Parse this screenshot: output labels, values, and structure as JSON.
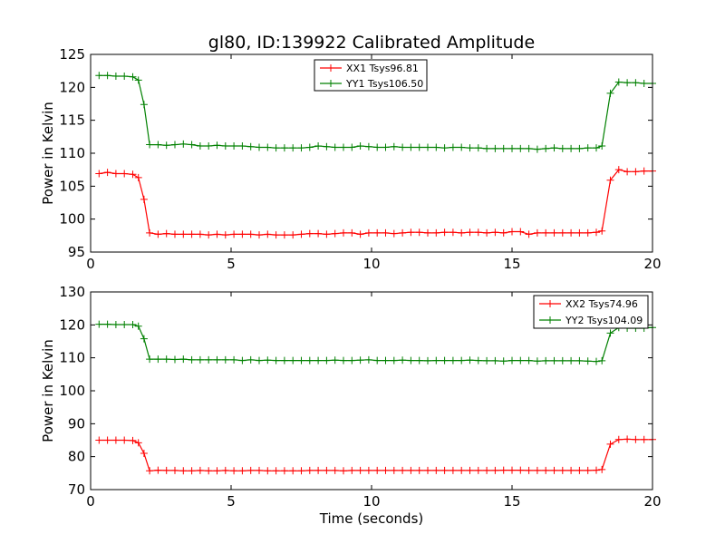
{
  "figure": {
    "title": "gl80, ID:139922 Calibrated Amplitude"
  },
  "chart_data": [
    {
      "type": "line",
      "title": "gl80, ID:139922 Calibrated Amplitude",
      "xlabel": "",
      "ylabel": "Power in Kelvin",
      "xlim": [
        0,
        20
      ],
      "ylim": [
        95,
        125
      ],
      "xticks": [
        "0",
        "5",
        "10",
        "15",
        "20"
      ],
      "yticks": [
        "95",
        "100",
        "105",
        "110",
        "115",
        "120",
        "125"
      ],
      "grid": false,
      "legend_position": "top-center",
      "x": [
        0.3,
        0.6,
        0.9,
        1.2,
        1.5,
        1.7,
        1.9,
        2.1,
        2.4,
        2.7,
        3.0,
        3.3,
        3.6,
        3.9,
        4.2,
        4.5,
        4.8,
        5.1,
        5.4,
        5.7,
        6.0,
        6.3,
        6.6,
        6.9,
        7.2,
        7.5,
        7.8,
        8.1,
        8.4,
        8.7,
        9.0,
        9.3,
        9.6,
        9.9,
        10.2,
        10.5,
        10.8,
        11.1,
        11.4,
        11.7,
        12.0,
        12.3,
        12.6,
        12.9,
        13.2,
        13.5,
        13.8,
        14.1,
        14.4,
        14.7,
        15.0,
        15.3,
        15.6,
        15.9,
        16.2,
        16.5,
        16.8,
        17.1,
        17.4,
        17.7,
        18.0,
        18.2,
        18.5,
        18.8,
        19.1,
        19.4,
        19.7,
        20.0
      ],
      "series": [
        {
          "name": "XX1 Tsys96.81",
          "color": "#ff0000",
          "values": [
            106.9,
            107.1,
            106.9,
            106.9,
            106.8,
            106.3,
            103.0,
            97.9,
            97.7,
            97.8,
            97.7,
            97.7,
            97.7,
            97.7,
            97.6,
            97.7,
            97.6,
            97.7,
            97.7,
            97.7,
            97.6,
            97.7,
            97.6,
            97.6,
            97.6,
            97.7,
            97.8,
            97.8,
            97.7,
            97.8,
            97.9,
            97.9,
            97.7,
            97.9,
            97.9,
            97.9,
            97.8,
            97.9,
            98.0,
            98.0,
            97.9,
            97.9,
            98.0,
            98.0,
            97.9,
            98.0,
            98.0,
            97.9,
            98.0,
            97.9,
            98.1,
            98.1,
            97.7,
            97.9,
            97.9,
            97.9,
            97.9,
            97.9,
            97.9,
            97.9,
            98.0,
            98.2,
            105.9,
            107.5,
            107.2,
            107.2,
            107.3,
            107.3
          ]
        },
        {
          "name": "YY1 Tsys106.50",
          "color": "#008000",
          "values": [
            121.8,
            121.8,
            121.7,
            121.7,
            121.6,
            121.1,
            117.4,
            111.3,
            111.3,
            111.2,
            111.3,
            111.4,
            111.3,
            111.1,
            111.1,
            111.2,
            111.1,
            111.1,
            111.1,
            111.0,
            110.9,
            110.9,
            110.8,
            110.8,
            110.8,
            110.8,
            110.9,
            111.1,
            111.0,
            110.9,
            110.9,
            110.9,
            111.1,
            111.0,
            110.9,
            110.9,
            111.0,
            110.9,
            110.9,
            110.9,
            110.9,
            110.9,
            110.8,
            110.9,
            110.9,
            110.8,
            110.8,
            110.7,
            110.7,
            110.7,
            110.7,
            110.7,
            110.7,
            110.6,
            110.7,
            110.8,
            110.7,
            110.7,
            110.7,
            110.8,
            110.8,
            111.1,
            119.1,
            120.8,
            120.7,
            120.7,
            120.6,
            120.6
          ]
        }
      ]
    },
    {
      "type": "line",
      "title": "",
      "xlabel": "Time (seconds)",
      "ylabel": "Power in Kelvin",
      "xlim": [
        0,
        20
      ],
      "ylim": [
        70,
        130
      ],
      "xticks": [
        "0",
        "5",
        "10",
        "15",
        "20"
      ],
      "yticks": [
        "70",
        "80",
        "90",
        "100",
        "110",
        "120",
        "130"
      ],
      "grid": false,
      "legend_position": "top-right",
      "x": [
        0.3,
        0.6,
        0.9,
        1.2,
        1.5,
        1.7,
        1.9,
        2.1,
        2.4,
        2.7,
        3.0,
        3.3,
        3.6,
        3.9,
        4.2,
        4.5,
        4.8,
        5.1,
        5.4,
        5.7,
        6.0,
        6.3,
        6.6,
        6.9,
        7.2,
        7.5,
        7.8,
        8.1,
        8.4,
        8.7,
        9.0,
        9.3,
        9.6,
        9.9,
        10.2,
        10.5,
        10.8,
        11.1,
        11.4,
        11.7,
        12.0,
        12.3,
        12.6,
        12.9,
        13.2,
        13.5,
        13.8,
        14.1,
        14.4,
        14.7,
        15.0,
        15.3,
        15.6,
        15.9,
        16.2,
        16.5,
        16.8,
        17.1,
        17.4,
        17.7,
        18.0,
        18.2,
        18.5,
        18.8,
        19.1,
        19.4,
        19.7,
        20.0
      ],
      "series": [
        {
          "name": "XX2 Tsys74.96",
          "color": "#ff0000",
          "values": [
            85.0,
            85.0,
            85.0,
            85.0,
            84.9,
            84.2,
            81.0,
            75.7,
            75.9,
            75.8,
            75.8,
            75.7,
            75.7,
            75.8,
            75.7,
            75.7,
            75.8,
            75.7,
            75.7,
            75.8,
            75.8,
            75.7,
            75.7,
            75.7,
            75.7,
            75.7,
            75.8,
            75.8,
            75.8,
            75.8,
            75.7,
            75.8,
            75.8,
            75.8,
            75.8,
            75.8,
            75.8,
            75.8,
            75.8,
            75.8,
            75.8,
            75.8,
            75.8,
            75.8,
            75.8,
            75.8,
            75.8,
            75.8,
            75.8,
            75.9,
            75.9,
            75.9,
            75.8,
            75.8,
            75.8,
            75.8,
            75.8,
            75.8,
            75.8,
            75.8,
            75.9,
            76.1,
            83.8,
            85.2,
            85.3,
            85.2,
            85.2,
            85.2
          ]
        },
        {
          "name": "YY2 Tsys104.09",
          "color": "#008000",
          "values": [
            120.2,
            120.2,
            120.1,
            120.1,
            120.1,
            119.6,
            115.8,
            109.6,
            109.6,
            109.6,
            109.5,
            109.6,
            109.4,
            109.4,
            109.4,
            109.4,
            109.4,
            109.4,
            109.2,
            109.4,
            109.2,
            109.3,
            109.2,
            109.2,
            109.2,
            109.2,
            109.2,
            109.2,
            109.2,
            109.3,
            109.2,
            109.2,
            109.3,
            109.4,
            109.2,
            109.2,
            109.2,
            109.3,
            109.2,
            109.2,
            109.1,
            109.2,
            109.2,
            109.2,
            109.2,
            109.3,
            109.2,
            109.1,
            109.1,
            109.0,
            109.2,
            109.2,
            109.2,
            109.0,
            109.1,
            109.1,
            109.1,
            109.1,
            109.1,
            109.0,
            108.9,
            109.1,
            117.5,
            119.2,
            119.0,
            119.0,
            119.0,
            119.2
          ]
        }
      ]
    }
  ]
}
